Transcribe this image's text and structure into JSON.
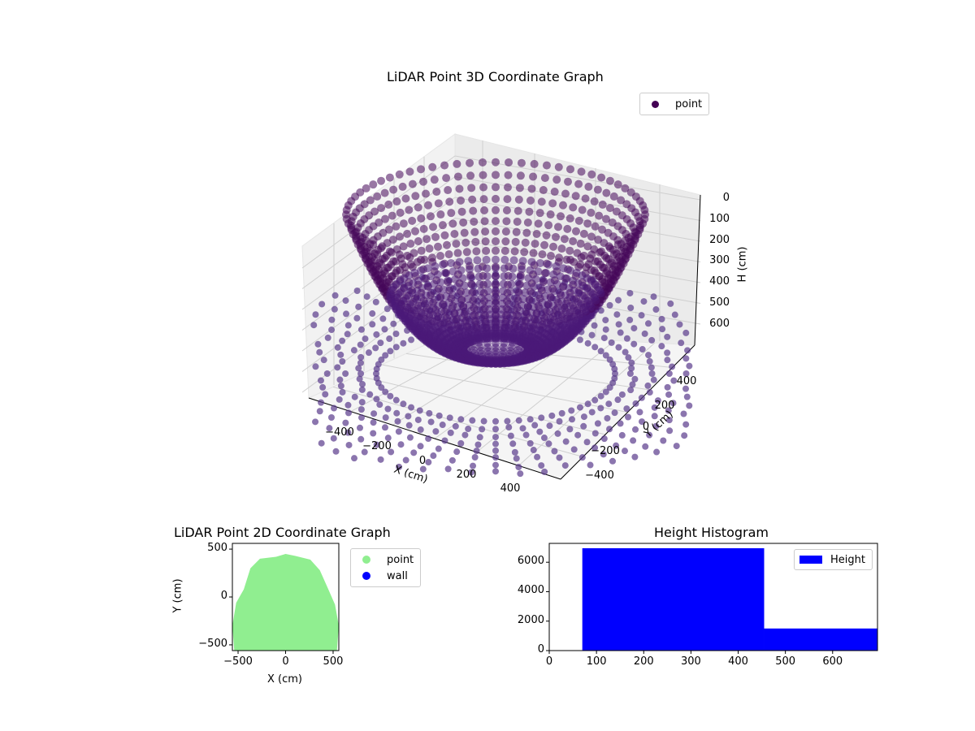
{
  "chart_data": [
    {
      "type": "scatter3d",
      "title": "LiDAR Point 3D Coordinate Graph",
      "xlabel": "X (cm)",
      "ylabel": "Y (cm)",
      "zlabel": "H (cm)",
      "x_ticks": [
        "−400",
        "−200",
        "0",
        "200",
        "400"
      ],
      "y_ticks": [
        "−400",
        "−200",
        "0",
        "200",
        "400"
      ],
      "z_ticks": [
        "0",
        "100",
        "200",
        "300",
        "400",
        "500",
        "600"
      ],
      "z_axis_inverted": true,
      "legend": [
        {
          "label": "point",
          "color": "#440154"
        }
      ],
      "grid": true,
      "data_note": "Dense cloud of thousands of overlapping markers; individual coordinates are not legible. Only the observed extent and shape are recorded.",
      "observed_extent": {
        "x_approx": [
          -500,
          500
        ],
        "y_approx": [
          -500,
          500
        ],
        "h_approx": [
          0,
          700
        ]
      },
      "observed_shape": "Radial spokes of points forming a bowl/dome: points near the center reach the top of the H axis, outer rings lie near the floor; colors follow a viridis-like dark purple gradient"
    },
    {
      "type": "scatter",
      "title": "LiDAR Point 2D Coordinate Graph",
      "xlabel": "X (cm)",
      "ylabel": "Y (cm)",
      "x_ticks": [
        "−500",
        "0",
        "500"
      ],
      "y_ticks": [
        "−500",
        "0",
        "500"
      ],
      "xlim": [
        -560,
        560
      ],
      "ylim": [
        -560,
        560
      ],
      "legend": [
        {
          "label": "point",
          "color": "#90ee90"
        },
        {
          "label": "wall",
          "color": "#0000ff"
        }
      ],
      "data_note": "Overlapping markers merge into a single filled region; individual coordinates are not legible. 'wall' appears in the legend but no wall points are visible.",
      "observed_extent": {
        "x_approx": [
          -540,
          560
        ],
        "y_approx": [
          -560,
          450
        ]
      },
      "observed_shape": "Filled dome: flat-ish base along the bottom edge near y=-560, widest near y=-200, rounding to a top near y=450"
    },
    {
      "type": "bar",
      "title": "Height Histogram",
      "subtype": "histogram",
      "xlabel": "",
      "ylabel": "",
      "bins": [
        {
          "from": 70,
          "to": 455,
          "count": 6950
        },
        {
          "from": 455,
          "to": 695,
          "count": 1500
        }
      ],
      "x_ticks": [
        "0",
        "100",
        "200",
        "300",
        "400",
        "500",
        "600"
      ],
      "y_ticks": [
        "0",
        "2000",
        "4000",
        "6000"
      ],
      "xlim": [
        0,
        695
      ],
      "ylim": [
        0,
        7280
      ],
      "legend": [
        {
          "label": "Height",
          "color": "#0000ff"
        }
      ],
      "grid": false,
      "legend_position": "upper right"
    }
  ],
  "labels": {
    "title3d": "LiDAR Point 3D Coordinate Graph",
    "title2d": "LiDAR Point 2D Coordinate Graph",
    "titleHist": "Height Histogram",
    "legend3d": "point",
    "legend2d_point": "point",
    "legend2d_wall": "wall",
    "legendHist": "Height",
    "x3d": "X (cm)",
    "y3d": "Y (cm)",
    "h3d": "H (cm)",
    "x2d": "X (cm)",
    "y2d": "Y (cm)"
  },
  "colors": {
    "point3d": "#440154",
    "point2d": "#90ee90",
    "wall": "#0000ff",
    "hist": "#0000ff"
  }
}
